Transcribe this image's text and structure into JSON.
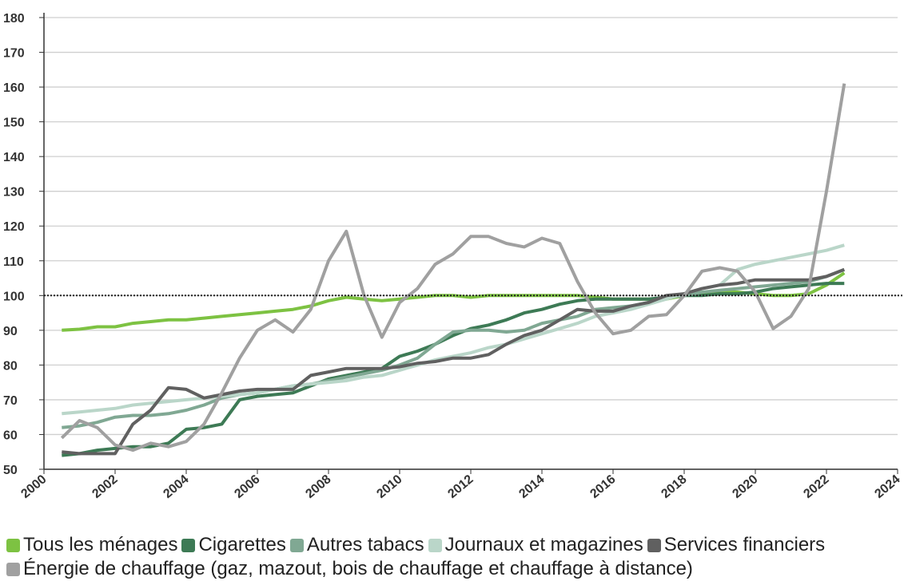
{
  "chart_data": {
    "type": "line",
    "x": [
      2000.5,
      2001,
      2001.5,
      2002,
      2002.5,
      2003,
      2003.5,
      2004,
      2004.5,
      2005,
      2005.5,
      2006,
      2006.5,
      2007,
      2007.5,
      2008,
      2008.5,
      2009,
      2009.5,
      2010,
      2010.5,
      2011,
      2011.5,
      2012,
      2012.5,
      2013,
      2013.5,
      2014,
      2014.5,
      2015,
      2015.5,
      2016,
      2016.5,
      2017,
      2017.5,
      2018,
      2018.5,
      2019,
      2019.5,
      2020,
      2020.5,
      2021,
      2021.5,
      2022,
      2022.5
    ],
    "series": [
      {
        "name": "Tous les ménages",
        "color": "#7dc242",
        "values": [
          90,
          90.3,
          91,
          91,
          92,
          92.5,
          93,
          93,
          93.5,
          94,
          94.5,
          95,
          95.5,
          96,
          97,
          98.5,
          99.5,
          99,
          98.5,
          99,
          99.5,
          100,
          100,
          99.5,
          100,
          100,
          100,
          100,
          100,
          100,
          99.5,
          99,
          99,
          99,
          99,
          100,
          100.5,
          101,
          101,
          100.5,
          100,
          100,
          100.5,
          103,
          106.5
        ]
      },
      {
        "name": "Cigarettes",
        "color": "#3d7a55",
        "values": [
          54,
          54.5,
          55.5,
          56,
          56.5,
          56.5,
          57.5,
          61.5,
          62,
          63,
          70,
          71,
          71.5,
          72,
          74,
          76,
          77,
          78,
          79,
          82.5,
          84,
          86,
          88.5,
          90.5,
          91.5,
          93,
          95,
          96,
          97.5,
          98.5,
          99,
          99,
          99,
          99,
          99.5,
          100,
          100,
          100.5,
          100.5,
          101,
          102,
          102.5,
          103,
          103.5,
          103.5
        ]
      },
      {
        "name": "Autres tabacs",
        "color": "#80a893",
        "values": [
          62,
          62.5,
          63.5,
          65,
          65.5,
          65.5,
          66,
          67,
          68.5,
          70.5,
          71.5,
          72,
          73,
          74,
          74.5,
          75.5,
          76.5,
          77.5,
          78.5,
          80,
          82,
          86,
          89.5,
          90,
          90,
          89.5,
          90,
          92,
          93,
          94,
          96,
          96.5,
          97,
          98,
          99.5,
          100,
          101,
          101.5,
          102,
          102.5,
          103,
          103.5,
          104,
          105.5,
          107.5
        ]
      },
      {
        "name": "Journaux et magazines",
        "color": "#bad6c9",
        "values": [
          66,
          66.5,
          67,
          67.5,
          68.5,
          69,
          69.5,
          70,
          70.5,
          71,
          71.5,
          72,
          73,
          74,
          74.5,
          75,
          75.5,
          76.5,
          77,
          78.5,
          80,
          81.5,
          82.5,
          83.5,
          85,
          86,
          87.5,
          89,
          90.5,
          92,
          94,
          95,
          96,
          97.5,
          99,
          100.5,
          102,
          103,
          107.5,
          109,
          110,
          111,
          112,
          113,
          114.5
        ]
      },
      {
        "name": "Services financiers",
        "color": "#606060",
        "values": [
          55,
          54.5,
          54.5,
          54.5,
          63,
          67,
          73.5,
          73,
          70.5,
          71.5,
          72.5,
          73,
          73,
          73,
          77,
          78,
          79,
          79,
          79,
          79.5,
          80.5,
          81,
          82,
          82,
          83,
          86,
          88.5,
          90,
          93,
          96,
          95.5,
          95.5,
          97,
          98,
          100,
          100.5,
          102,
          103,
          103.5,
          104.5,
          104.5,
          104.5,
          104.5,
          105.5,
          107.5
        ]
      },
      {
        "name": "Énergie de chauffage (gaz, mazout, bois de chauffage et chauffage à distance)",
        "color": "#a0a0a0",
        "values": [
          59,
          64,
          62,
          57,
          55.5,
          57.5,
          56.5,
          58,
          63,
          72,
          82,
          90,
          93,
          89.5,
          96,
          110,
          118.5,
          100,
          88,
          98,
          102,
          109,
          112,
          117,
          117,
          115,
          114,
          116.5,
          115,
          104,
          95,
          89,
          90,
          94,
          94.5,
          100,
          107,
          108,
          107,
          101,
          90.5,
          94,
          102,
          130,
          161
        ]
      }
    ],
    "reference_line": 100,
    "xlim": [
      2000,
      2024
    ],
    "xticks": [
      2000,
      2002,
      2004,
      2006,
      2008,
      2010,
      2012,
      2014,
      2016,
      2018,
      2020,
      2022,
      2024
    ],
    "ylim": [
      50,
      180
    ],
    "yticks": [
      50,
      60,
      70,
      80,
      90,
      100,
      110,
      120,
      130,
      140,
      150,
      160,
      170,
      180
    ],
    "grid": true
  }
}
